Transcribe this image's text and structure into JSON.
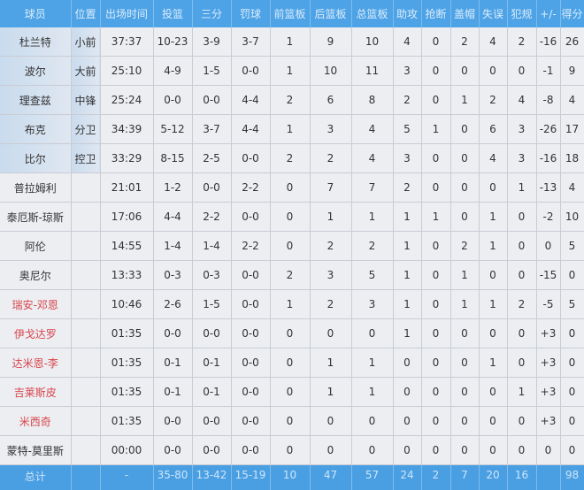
{
  "headers": [
    "球员",
    "位置",
    "出场时间",
    "投篮",
    "三分",
    "罚球",
    "前篮板",
    "后篮板",
    "总篮板",
    "助攻",
    "抢断",
    "盖帽",
    "失误",
    "犯规",
    "+/-",
    "得分"
  ],
  "colors": {
    "header": "#4da3e6",
    "bench_highlight_name": "#d8454c"
  },
  "rows": [
    {
      "starter": true,
      "red": false,
      "cells": [
        "杜兰特",
        "小前",
        "37:37",
        "10-23",
        "3-9",
        "3-7",
        "1",
        "9",
        "10",
        "4",
        "0",
        "2",
        "4",
        "2",
        "-16",
        "26"
      ]
    },
    {
      "starter": true,
      "red": false,
      "cells": [
        "波尔",
        "大前",
        "25:10",
        "4-9",
        "1-5",
        "0-0",
        "1",
        "10",
        "11",
        "3",
        "0",
        "0",
        "0",
        "0",
        "-1",
        "9"
      ]
    },
    {
      "starter": true,
      "red": false,
      "cells": [
        "理查兹",
        "中锋",
        "25:24",
        "0-0",
        "0-0",
        "4-4",
        "2",
        "6",
        "8",
        "2",
        "0",
        "1",
        "2",
        "4",
        "-8",
        "4"
      ]
    },
    {
      "starter": true,
      "red": false,
      "cells": [
        "布克",
        "分卫",
        "34:39",
        "5-12",
        "3-7",
        "4-4",
        "1",
        "3",
        "4",
        "5",
        "1",
        "0",
        "6",
        "3",
        "-26",
        "17"
      ]
    },
    {
      "starter": true,
      "red": false,
      "cells": [
        "比尔",
        "控卫",
        "33:29",
        "8-15",
        "2-5",
        "0-0",
        "2",
        "2",
        "4",
        "3",
        "0",
        "0",
        "4",
        "3",
        "-16",
        "18"
      ]
    },
    {
      "starter": false,
      "red": false,
      "cells": [
        "普拉姆利",
        "",
        "21:01",
        "1-2",
        "0-0",
        "2-2",
        "0",
        "7",
        "7",
        "2",
        "0",
        "0",
        "0",
        "1",
        "-13",
        "4"
      ]
    },
    {
      "starter": false,
      "red": false,
      "cells": [
        "泰厄斯-琼斯",
        "",
        "17:06",
        "4-4",
        "2-2",
        "0-0",
        "0",
        "1",
        "1",
        "1",
        "1",
        "0",
        "1",
        "0",
        "-2",
        "10"
      ]
    },
    {
      "starter": false,
      "red": false,
      "cells": [
        "阿伦",
        "",
        "14:55",
        "1-4",
        "1-4",
        "2-2",
        "0",
        "2",
        "2",
        "1",
        "0",
        "2",
        "1",
        "0",
        "0",
        "5"
      ]
    },
    {
      "starter": false,
      "red": false,
      "cells": [
        "奥尼尔",
        "",
        "13:33",
        "0-3",
        "0-3",
        "0-0",
        "2",
        "3",
        "5",
        "1",
        "0",
        "1",
        "0",
        "0",
        "-15",
        "0"
      ]
    },
    {
      "starter": false,
      "red": true,
      "cells": [
        "瑞安-邓恩",
        "",
        "10:46",
        "2-6",
        "1-5",
        "0-0",
        "1",
        "2",
        "3",
        "1",
        "0",
        "1",
        "1",
        "2",
        "-5",
        "5"
      ]
    },
    {
      "starter": false,
      "red": true,
      "cells": [
        "伊戈达罗",
        "",
        "01:35",
        "0-0",
        "0-0",
        "0-0",
        "0",
        "0",
        "0",
        "1",
        "0",
        "0",
        "0",
        "0",
        "+3",
        "0"
      ]
    },
    {
      "starter": false,
      "red": true,
      "cells": [
        "达米恩-李",
        "",
        "01:35",
        "0-1",
        "0-1",
        "0-0",
        "0",
        "1",
        "1",
        "0",
        "0",
        "0",
        "1",
        "0",
        "+3",
        "0"
      ]
    },
    {
      "starter": false,
      "red": true,
      "cells": [
        "吉莱斯皮",
        "",
        "01:35",
        "0-1",
        "0-1",
        "0-0",
        "0",
        "1",
        "1",
        "0",
        "0",
        "0",
        "0",
        "1",
        "+3",
        "0"
      ]
    },
    {
      "starter": false,
      "red": true,
      "cells": [
        "米西奇",
        "",
        "01:35",
        "0-0",
        "0-0",
        "0-0",
        "0",
        "0",
        "0",
        "0",
        "0",
        "0",
        "0",
        "0",
        "+3",
        "0"
      ]
    },
    {
      "starter": false,
      "red": false,
      "cells": [
        "蒙特-莫里斯",
        "",
        "00:00",
        "0-0",
        "0-0",
        "0-0",
        "0",
        "0",
        "0",
        "0",
        "0",
        "0",
        "0",
        "0",
        "0",
        "0"
      ]
    }
  ],
  "total": [
    "总计",
    "",
    "-",
    "35-80",
    "13-42",
    "15-19",
    "10",
    "47",
    "57",
    "24",
    "2",
    "7",
    "20",
    "16",
    "",
    "98"
  ]
}
